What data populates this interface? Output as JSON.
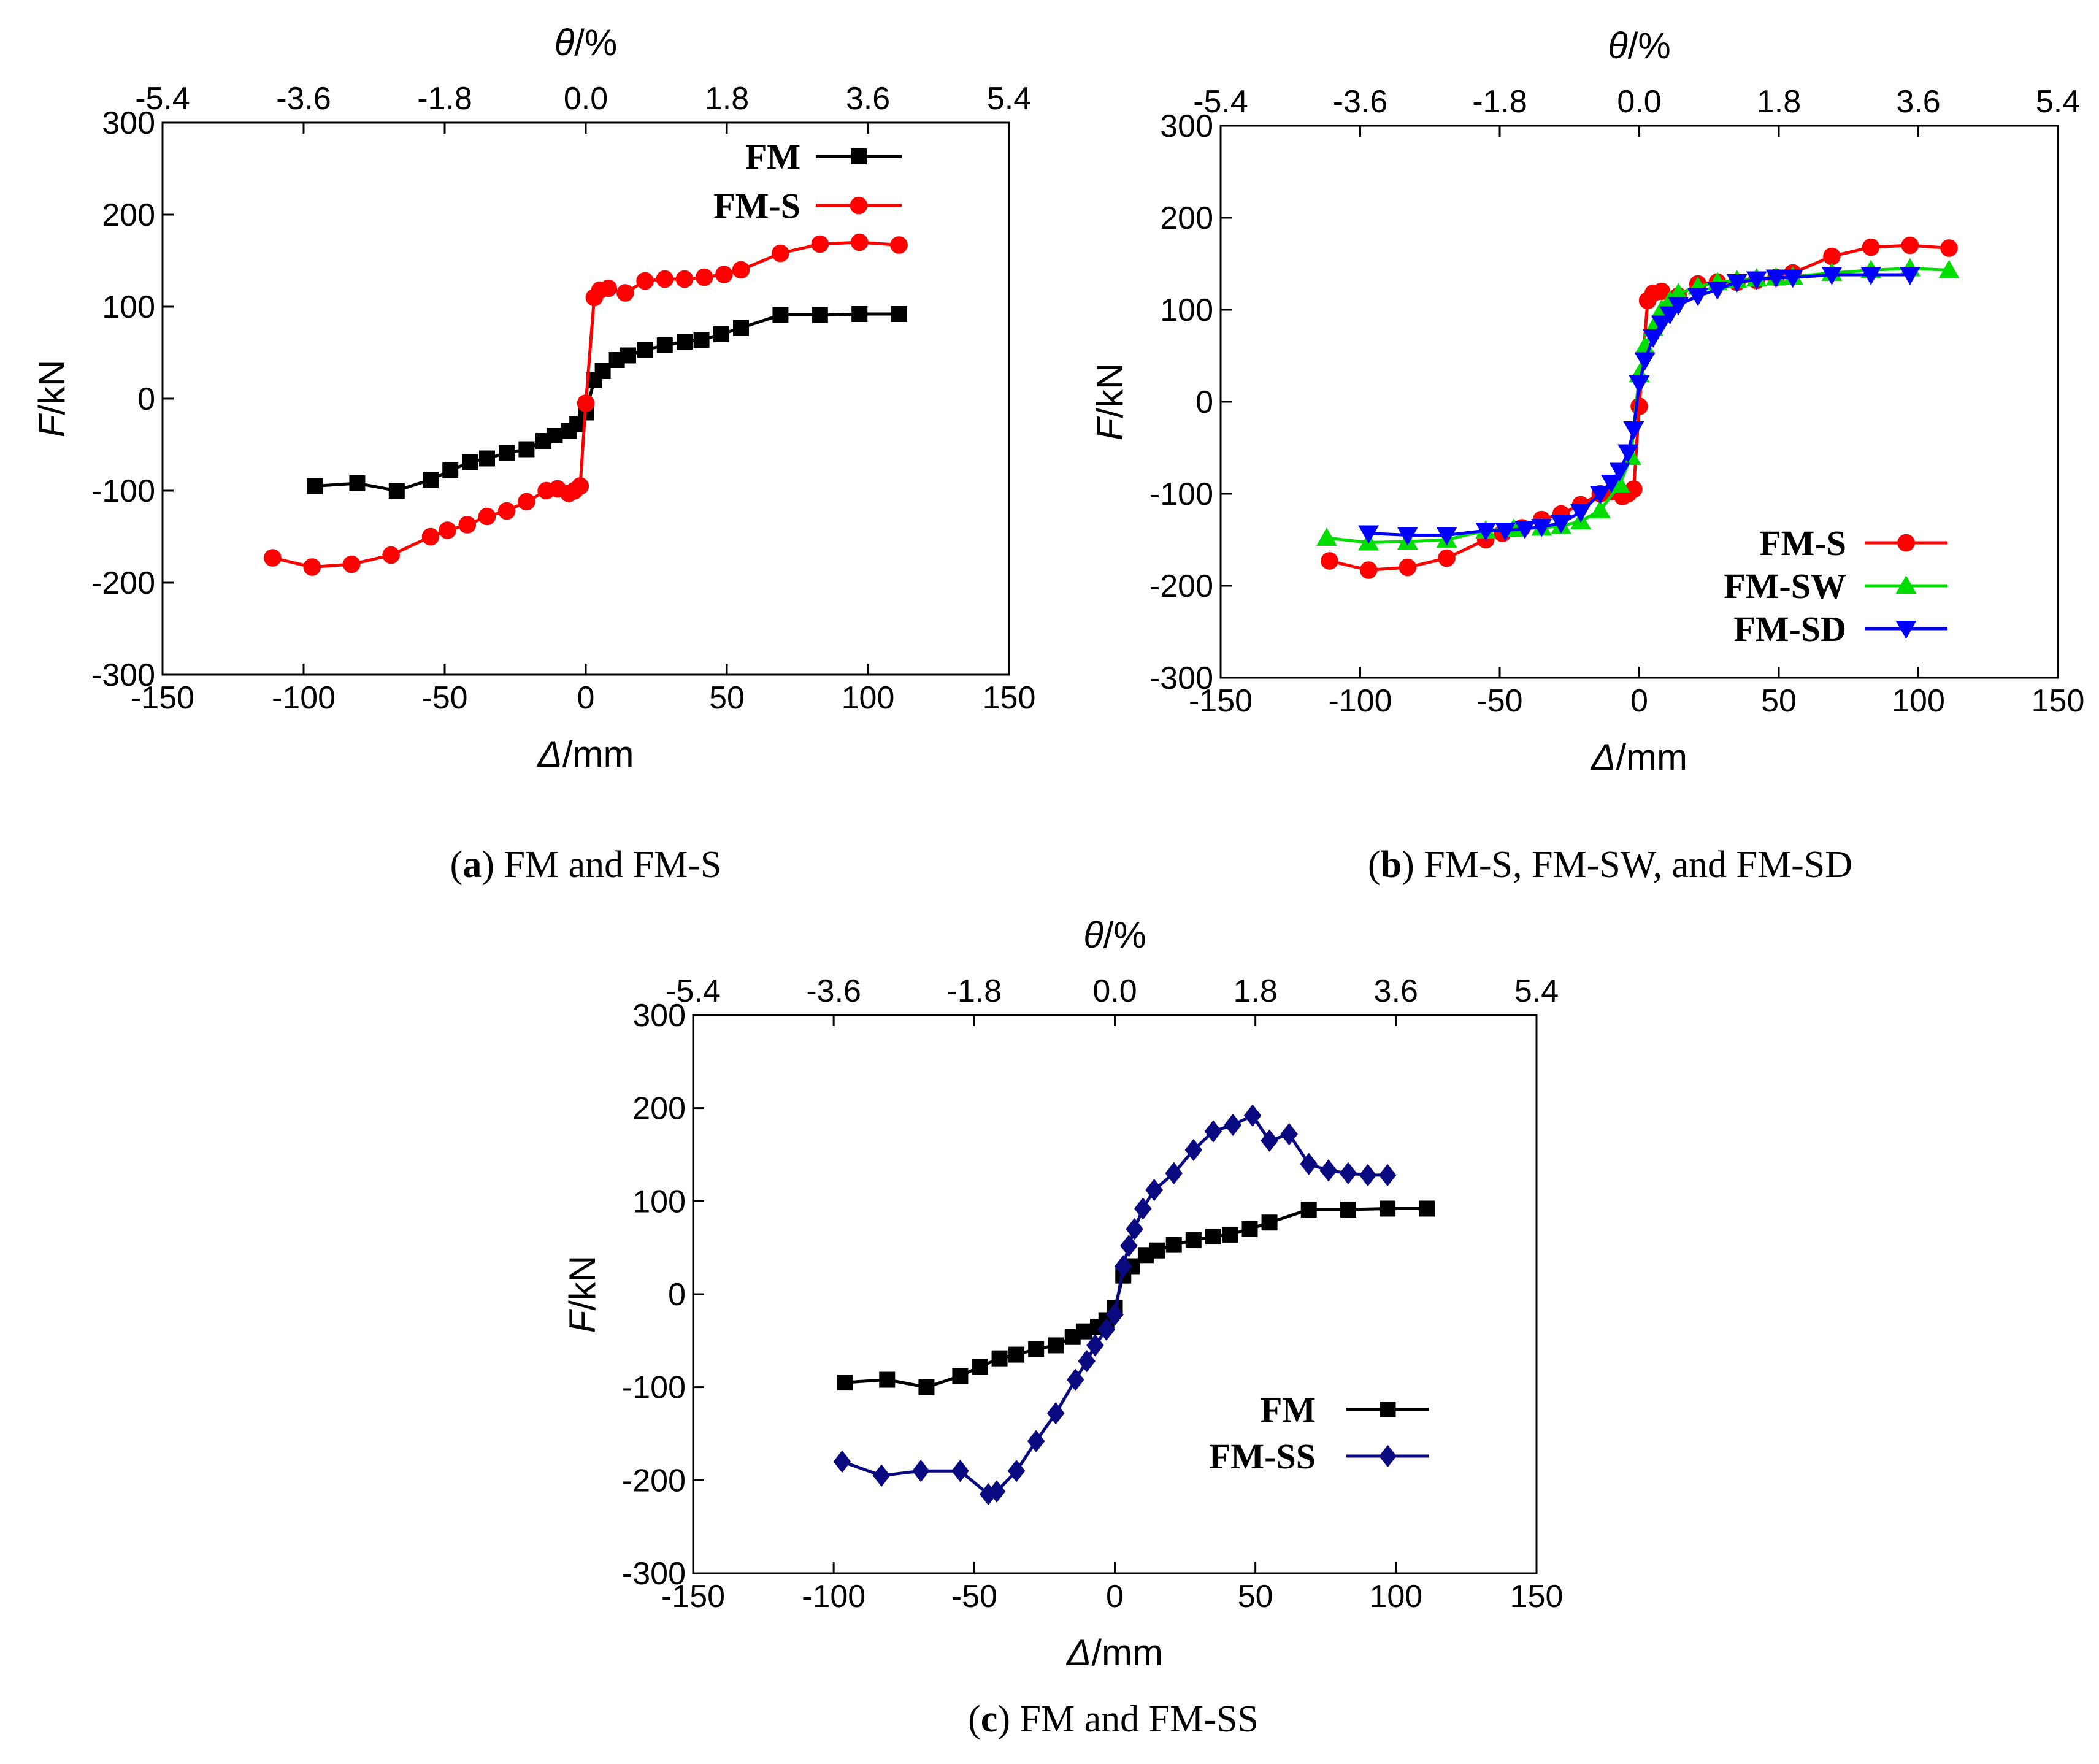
{
  "chart_data": [
    {
      "type": "line",
      "caption_letter": "a",
      "caption_text": " FM and FM-S",
      "xlabel_italic": "Δ",
      "xlabel_unit": "/mm",
      "ylabel_italic": "F",
      "ylabel_unit": "/kN",
      "top_label_italic": "θ",
      "top_label_unit": "/%",
      "xlim": [
        -150,
        150
      ],
      "ylim": [
        -300,
        300
      ],
      "xticks": [
        "-150",
        "-100",
        "-50",
        "0",
        "50",
        "100",
        "150"
      ],
      "yticks": [
        "300",
        "200",
        "100",
        "0",
        "-100",
        "-200",
        "-300"
      ],
      "top_ticks": [
        "-5.4",
        "-3.6",
        "-1.8",
        "0.0",
        "1.8",
        "3.6",
        "5.4"
      ],
      "legend_position": "top-right",
      "series": [
        {
          "name": "FM",
          "color": "#000000",
          "marker": "square",
          "x": [
            -96,
            -81,
            -67,
            -55,
            -48,
            -41,
            -35,
            -28,
            -21,
            -15,
            -11,
            -6,
            -3,
            0,
            3,
            6,
            11,
            15,
            21,
            28,
            35,
            41,
            48,
            55,
            69,
            83,
            97,
            111
          ],
          "y": [
            -95,
            -92,
            -100,
            -88,
            -78,
            -69,
            -65,
            -59,
            -55,
            -46,
            -40,
            -35,
            -28,
            -15,
            20,
            30,
            42,
            47,
            53,
            58,
            62,
            64,
            70,
            77,
            91,
            91,
            92,
            92
          ]
        },
        {
          "name": "FM-S",
          "color": "#ff0000",
          "marker": "circle",
          "x": [
            -111,
            -97,
            -83,
            -69,
            -55,
            -49,
            -42,
            -35,
            -28,
            -21,
            -14,
            -10,
            -6,
            -4,
            -2,
            0,
            3,
            5,
            8,
            14,
            21,
            28,
            35,
            42,
            49,
            55,
            69,
            83,
            97,
            111
          ],
          "y": [
            -173,
            -183,
            -180,
            -170,
            -150,
            -143,
            -137,
            -128,
            -122,
            -112,
            -100,
            -98,
            -103,
            -100,
            -95,
            -5,
            110,
            118,
            120,
            115,
            128,
            130,
            130,
            132,
            135,
            140,
            158,
            168,
            170,
            167
          ]
        }
      ]
    },
    {
      "type": "line",
      "caption_letter": "b",
      "caption_text": " FM-S, FM-SW, and FM-SD",
      "xlabel_italic": "Δ",
      "xlabel_unit": "/mm",
      "ylabel_italic": "F",
      "ylabel_unit": "/kN",
      "top_label_italic": "θ",
      "top_label_unit": "/%",
      "xlim": [
        -150,
        150
      ],
      "ylim": [
        -300,
        300
      ],
      "xticks": [
        "-150",
        "-100",
        "-50",
        "0",
        "50",
        "100",
        "150"
      ],
      "yticks": [
        "300",
        "200",
        "100",
        "0",
        "-100",
        "-200",
        "-300"
      ],
      "top_ticks": [
        "-5.4",
        "-3.6",
        "-1.8",
        "0.0",
        "1.8",
        "3.6",
        "5.4"
      ],
      "legend_position": "bottom-right",
      "series": [
        {
          "name": "FM-S",
          "color": "#ff0000",
          "marker": "circle",
          "x": [
            -111,
            -97,
            -83,
            -69,
            -55,
            -49,
            -42,
            -35,
            -28,
            -21,
            -14,
            -10,
            -6,
            -4,
            -2,
            0,
            3,
            5,
            8,
            14,
            21,
            28,
            35,
            42,
            49,
            55,
            69,
            83,
            97,
            111
          ],
          "y": [
            -173,
            -183,
            -180,
            -170,
            -150,
            -143,
            -137,
            -128,
            -122,
            -112,
            -100,
            -98,
            -103,
            -100,
            -95,
            -5,
            110,
            118,
            120,
            115,
            128,
            130,
            130,
            132,
            135,
            140,
            158,
            168,
            170,
            167
          ]
        },
        {
          "name": "FM-SW",
          "color": "#00dd00",
          "marker": "triangle-up",
          "x": [
            -112,
            -97,
            -83,
            -69,
            -55,
            -45,
            -35,
            -28,
            -21,
            -14,
            -7,
            -3,
            0,
            2,
            5,
            8,
            11,
            14,
            21,
            28,
            35,
            42,
            49,
            55,
            69,
            83,
            97,
            111
          ],
          "y": [
            -148,
            -153,
            -152,
            -150,
            -140,
            -138,
            -137,
            -135,
            -130,
            -118,
            -90,
            -60,
            30,
            60,
            80,
            100,
            110,
            118,
            125,
            130,
            132,
            134,
            135,
            136,
            140,
            143,
            145,
            143
          ]
        },
        {
          "name": "FM-SD",
          "color": "#0000ff",
          "marker": "triangle-down",
          "x": [
            -97,
            -83,
            -69,
            -55,
            -48,
            -41,
            -35,
            -28,
            -21,
            -14,
            -10,
            -7,
            -4,
            -2,
            0,
            2,
            5,
            8,
            11,
            14,
            21,
            28,
            35,
            42,
            49,
            55,
            69,
            83,
            97
          ],
          "y": [
            -143,
            -145,
            -145,
            -140,
            -140,
            -138,
            -136,
            -132,
            -120,
            -100,
            -88,
            -75,
            -55,
            -30,
            20,
            45,
            70,
            85,
            95,
            105,
            115,
            122,
            130,
            133,
            135,
            135,
            138,
            138,
            138
          ]
        }
      ]
    },
    {
      "type": "line",
      "caption_letter": "c",
      "caption_text": " FM and FM-SS",
      "xlabel_italic": "Δ",
      "xlabel_unit": "/mm",
      "ylabel_italic": "F",
      "ylabel_unit": "/kN",
      "top_label_italic": "θ",
      "top_label_unit": "/%",
      "xlim": [
        -150,
        150
      ],
      "ylim": [
        -300,
        300
      ],
      "xticks": [
        "-150",
        "-100",
        "-50",
        "0",
        "50",
        "100",
        "150"
      ],
      "yticks": [
        "300",
        "200",
        "100",
        "0",
        "-100",
        "-200",
        "-300"
      ],
      "top_ticks": [
        "-5.4",
        "-3.6",
        "-1.8",
        "0.0",
        "1.8",
        "3.6",
        "5.4"
      ],
      "legend_position": "bottom-right",
      "series": [
        {
          "name": "FM",
          "color": "#000000",
          "marker": "square",
          "x": [
            -96,
            -81,
            -67,
            -55,
            -48,
            -41,
            -35,
            -28,
            -21,
            -15,
            -11,
            -6,
            -3,
            0,
            3,
            6,
            11,
            15,
            21,
            28,
            35,
            41,
            48,
            55,
            69,
            83,
            97,
            111
          ],
          "y": [
            -95,
            -92,
            -100,
            -88,
            -78,
            -69,
            -65,
            -59,
            -55,
            -46,
            -40,
            -35,
            -28,
            -15,
            20,
            30,
            42,
            47,
            53,
            58,
            62,
            64,
            70,
            77,
            91,
            91,
            92,
            92
          ]
        },
        {
          "name": "FM-SS",
          "color": "#0a0a80",
          "marker": "diamond",
          "x": [
            -97,
            -83,
            -69,
            -55,
            -45,
            -42,
            -35,
            -28,
            -21,
            -14,
            -10,
            -7,
            -3,
            0,
            3,
            5,
            7,
            10,
            14,
            21,
            28,
            35,
            42,
            49,
            55,
            62,
            69,
            76,
            83,
            90,
            97
          ],
          "y": [
            -180,
            -195,
            -190,
            -190,
            -215,
            -212,
            -190,
            -158,
            -128,
            -92,
            -72,
            -55,
            -38,
            -22,
            30,
            52,
            70,
            92,
            112,
            130,
            155,
            175,
            182,
            192,
            165,
            172,
            140,
            133,
            130,
            128,
            128
          ]
        }
      ]
    }
  ]
}
